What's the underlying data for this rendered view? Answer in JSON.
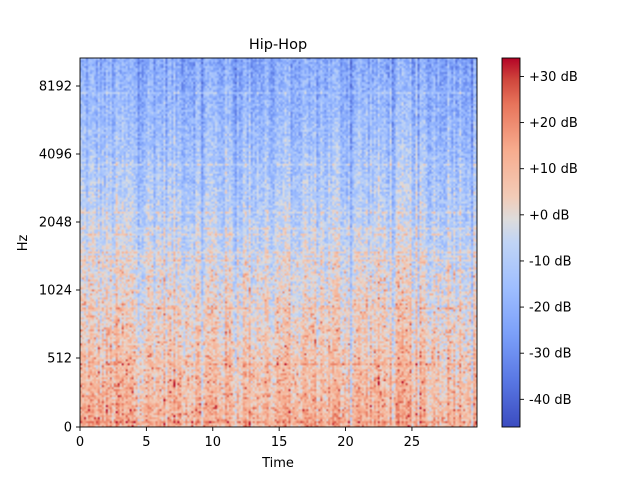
{
  "chart_data": {
    "type": "heatmap",
    "title": "Hip-Hop",
    "xlabel": "Time",
    "ylabel": "Hz",
    "x_ticks": [
      0,
      5,
      10,
      15,
      20,
      25
    ],
    "xlim": [
      0,
      29.9
    ],
    "y_scale": "log2 (symlog-like)",
    "y_ticks": [
      {
        "value": 0,
        "label": "0"
      },
      {
        "value": 512,
        "label": "512"
      },
      {
        "value": 1024,
        "label": "1024"
      },
      {
        "value": 2048,
        "label": "2048"
      },
      {
        "value": 4096,
        "label": "4096"
      },
      {
        "value": 8192,
        "label": "8192"
      }
    ],
    "colorbar": {
      "colormap": "coolwarm",
      "range_db": [
        -46,
        34
      ],
      "ticks": [
        {
          "value": 30,
          "label": "+30 dB"
        },
        {
          "value": 20,
          "label": "+20 dB"
        },
        {
          "value": 10,
          "label": "+10 dB"
        },
        {
          "value": 0,
          "label": "+0 dB"
        },
        {
          "value": -10,
          "label": "-10 dB"
        },
        {
          "value": -20,
          "label": "-20 dB"
        },
        {
          "value": -30,
          "label": "-30 dB"
        },
        {
          "value": -40,
          "label": "-40 dB"
        }
      ]
    },
    "grid": false
  }
}
